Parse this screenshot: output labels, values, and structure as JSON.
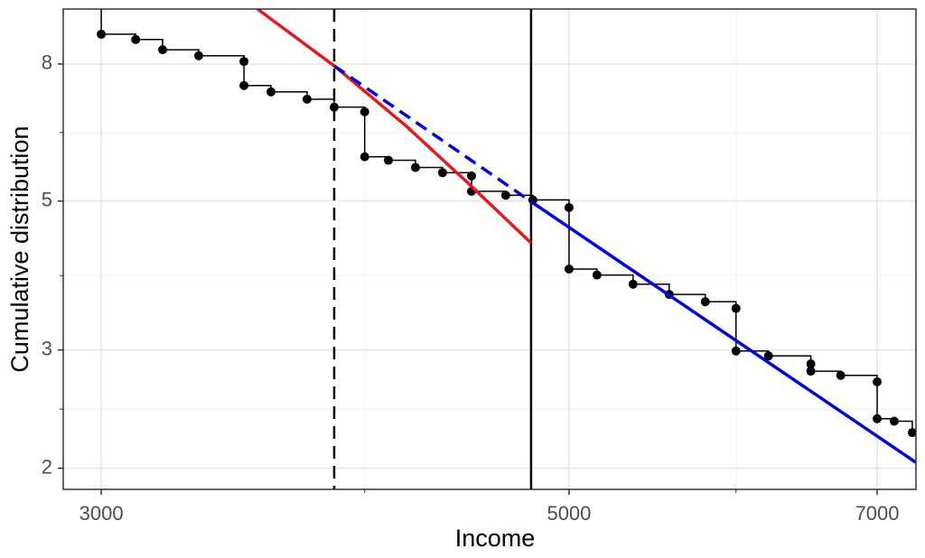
{
  "chart_data": {
    "type": "scatter",
    "x_label": "Income",
    "y_label": "Cumulative distribution",
    "xlog": true,
    "ylog": true,
    "grid": true,
    "xlim": [
      2878,
      7303
    ],
    "ylim": [
      1.86,
      9.66
    ],
    "xticks": [
      3000,
      5000,
      7000
    ],
    "yticks": [
      2,
      3,
      5,
      8
    ],
    "xminor": [
      4000,
      6000
    ],
    "yminor": [
      2.449,
      3.873,
      6.325
    ],
    "color": "#000000",
    "x": [
      3000,
      3115,
      3208,
      3337,
      3506,
      3506,
      3611,
      3756,
      3869,
      4000,
      4000,
      4105,
      4228,
      4355,
      4495,
      4495,
      4666,
      4806,
      5000,
      5000,
      5155,
      5362,
      5578,
      5802,
      6000,
      6000,
      6217,
      6511,
      6511,
      6727,
      7000,
      7000,
      7132,
      7274
    ],
    "values": [
      8.86,
      8.7,
      8.4,
      8.23,
      8.07,
      7.43,
      7.27,
      7.09,
      6.9,
      6.79,
      5.82,
      5.75,
      5.61,
      5.51,
      5.45,
      5.17,
      5.1,
      5.02,
      4.89,
      3.96,
      3.88,
      3.76,
      3.63,
      3.54,
      3.46,
      2.99,
      2.94,
      2.86,
      2.79,
      2.75,
      2.69,
      2.37,
      2.35,
      2.26
    ],
    "lines": [
      {
        "color": "#e31a1c",
        "dash": false,
        "x": [
          3558,
          3869,
          4187,
          4486,
          4797
        ],
        "values": [
          9.66,
          7.95,
          6.46,
          5.29,
          4.33
        ]
      },
      {
        "color": "#0000dd",
        "dash": true,
        "x": [
          3869,
          4797
        ],
        "values": [
          7.95,
          4.99
        ]
      },
      {
        "color": "#0000dd",
        "dash": false,
        "x": [
          4797,
          7303
        ],
        "values": [
          4.99,
          2.04
        ]
      }
    ],
    "vlines": [
      {
        "x": 3869,
        "dash": true
      },
      {
        "x": 4797,
        "dash": false
      }
    ]
  }
}
